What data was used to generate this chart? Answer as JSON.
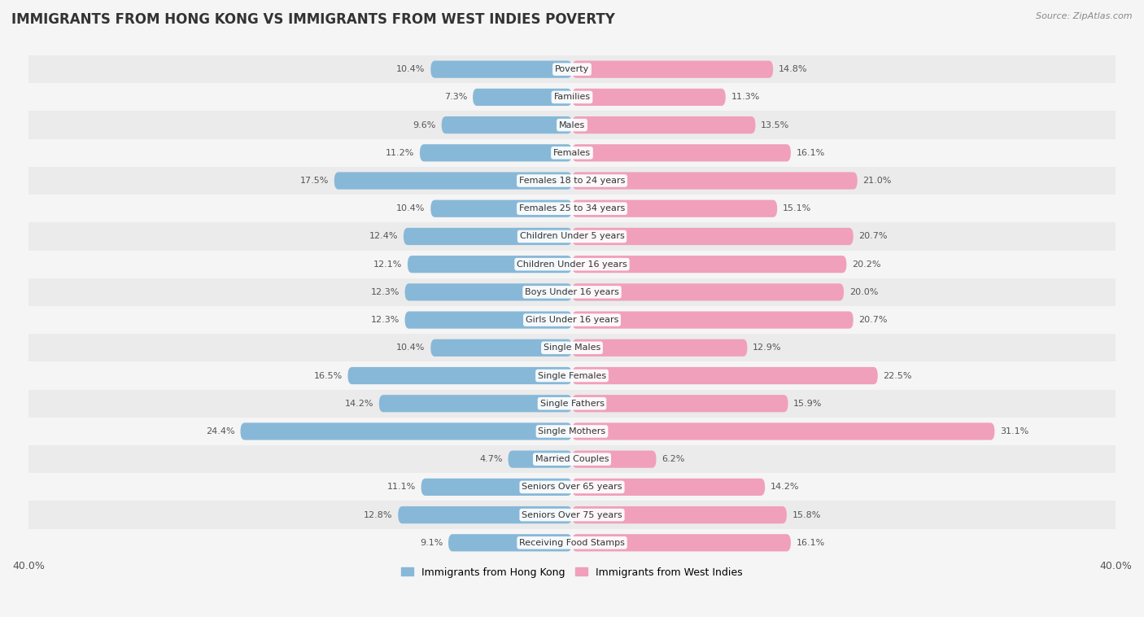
{
  "title": "IMMIGRANTS FROM HONG KONG VS IMMIGRANTS FROM WEST INDIES POVERTY",
  "source": "Source: ZipAtlas.com",
  "categories": [
    "Poverty",
    "Families",
    "Males",
    "Females",
    "Females 18 to 24 years",
    "Females 25 to 34 years",
    "Children Under 5 years",
    "Children Under 16 years",
    "Boys Under 16 years",
    "Girls Under 16 years",
    "Single Males",
    "Single Females",
    "Single Fathers",
    "Single Mothers",
    "Married Couples",
    "Seniors Over 65 years",
    "Seniors Over 75 years",
    "Receiving Food Stamps"
  ],
  "hong_kong_values": [
    10.4,
    7.3,
    9.6,
    11.2,
    17.5,
    10.4,
    12.4,
    12.1,
    12.3,
    12.3,
    10.4,
    16.5,
    14.2,
    24.4,
    4.7,
    11.1,
    12.8,
    9.1
  ],
  "west_indies_values": [
    14.8,
    11.3,
    13.5,
    16.1,
    21.0,
    15.1,
    20.7,
    20.2,
    20.0,
    20.7,
    12.9,
    22.5,
    15.9,
    31.1,
    6.2,
    14.2,
    15.8,
    16.1
  ],
  "hong_kong_color": "#88b8d8",
  "west_indies_color": "#f0a0bb",
  "hong_kong_label": "Immigrants from Hong Kong",
  "west_indies_label": "Immigrants from West Indies",
  "xlim": 40.0,
  "bar_height": 0.62,
  "background_color": "#f5f5f5",
  "row_odd_color": "#ebebeb",
  "row_even_color": "#f5f5f5",
  "title_fontsize": 12,
  "label_fontsize": 8,
  "value_fontsize": 8
}
